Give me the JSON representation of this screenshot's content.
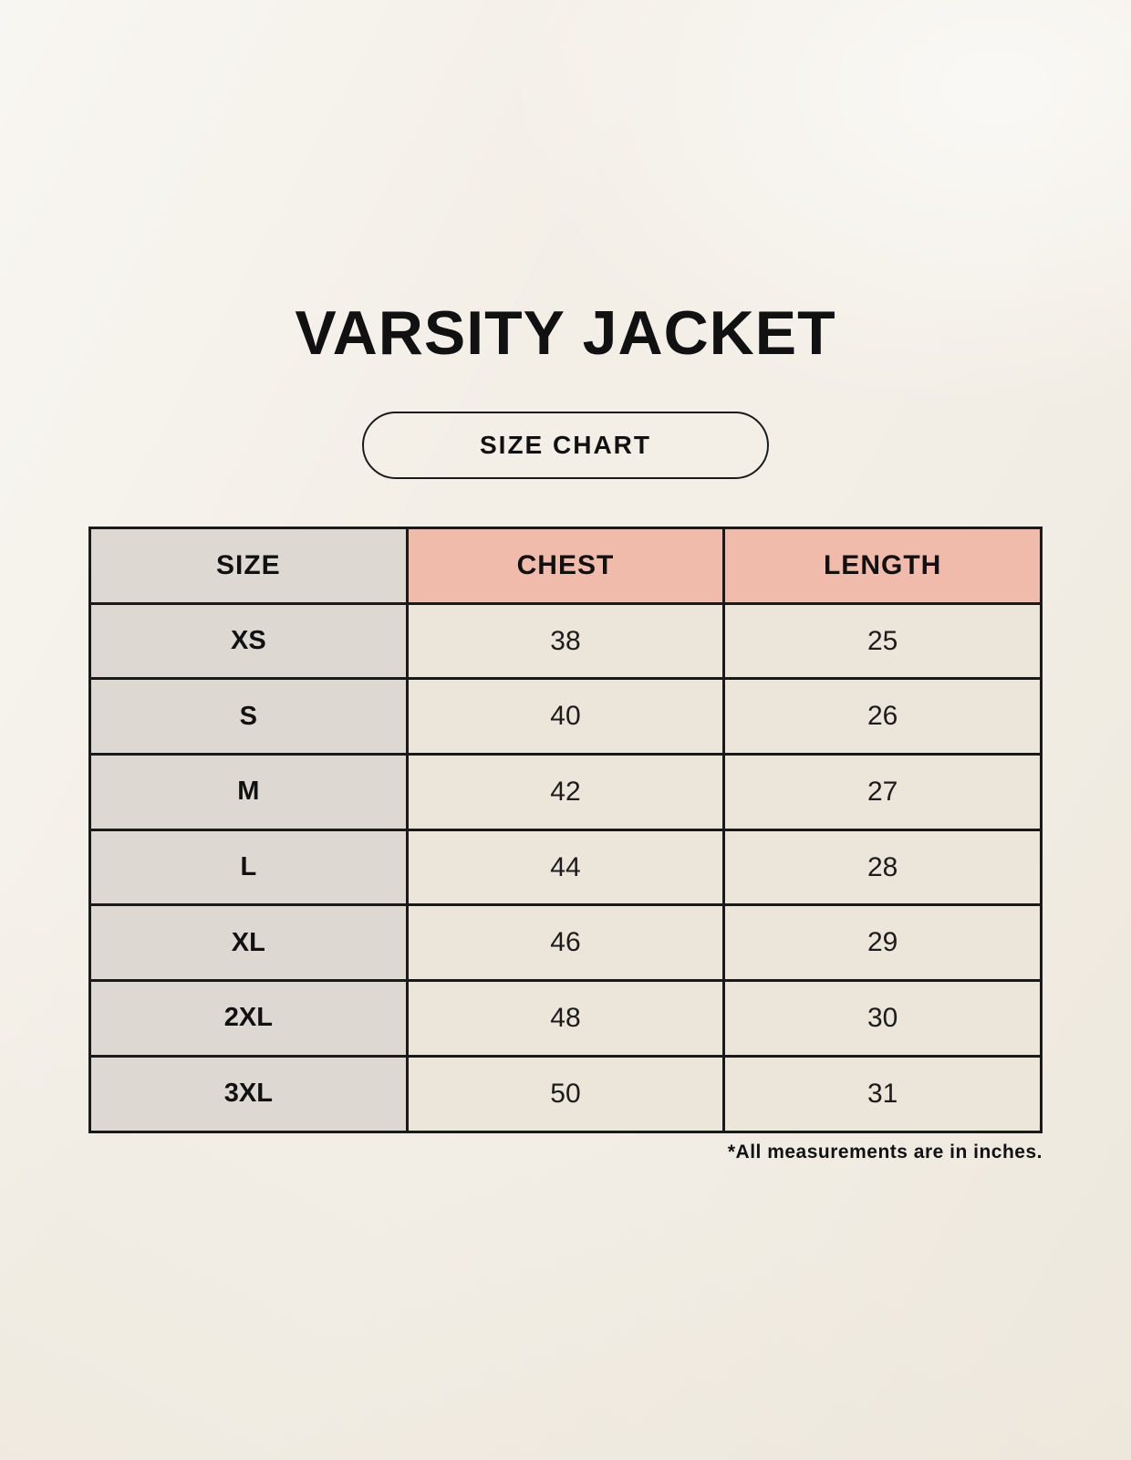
{
  "page": {
    "title": "VARSITY JACKET",
    "badge_label": "SIZE CHART",
    "footnote": "*All measurements are in inches."
  },
  "colors": {
    "background": "#f3efe7",
    "size_column": "#ded8d3",
    "accent_header": "#f0bbaa",
    "value_cell": "#ece5d9",
    "border": "#1a1a1a",
    "text": "#111111"
  },
  "chart_data": {
    "type": "table",
    "title": "VARSITY JACKET size chart",
    "columns": [
      "SIZE",
      "CHEST",
      "LENGTH"
    ],
    "units": "inches",
    "rows": [
      {
        "size": "XS",
        "chest": 38,
        "length": 25
      },
      {
        "size": "S",
        "chest": 40,
        "length": 26
      },
      {
        "size": "M",
        "chest": 42,
        "length": 27
      },
      {
        "size": "L",
        "chest": 44,
        "length": 28
      },
      {
        "size": "XL",
        "chest": 46,
        "length": 29
      },
      {
        "size": "2XL",
        "chest": 48,
        "length": 30
      },
      {
        "size": "3XL",
        "chest": 50,
        "length": 31
      }
    ]
  }
}
